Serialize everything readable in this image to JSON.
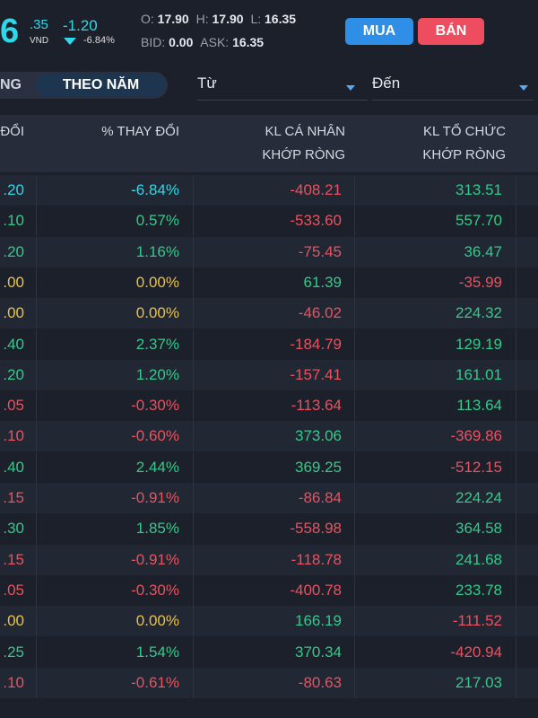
{
  "quote": {
    "price_int": "6",
    "price_dec": ".35",
    "currency": "VND",
    "change": "-1.20",
    "change_pct": "-6.84%",
    "open_label": "O:",
    "open": "17.90",
    "high_label": "H:",
    "high": "17.90",
    "low_label": "L:",
    "low": "16.35",
    "bid_label": "BID:",
    "bid": "0.00",
    "ask_label": "ASK:",
    "ask": "16.35"
  },
  "buttons": {
    "buy": "MUA",
    "sell": "BÁN"
  },
  "tabs": {
    "prev": "NG",
    "active": "THEO NĂM"
  },
  "filters": {
    "from": "Từ",
    "to": "Đến"
  },
  "table": {
    "headers": [
      "ĐỔI",
      "% THAY ĐỔI",
      [
        "KL CÁ NHÂN",
        "KHỚP RÒNG"
      ],
      [
        "KL TỔ CHỨC",
        "KHỚP RÒNG"
      ]
    ],
    "rows": [
      [
        ".20",
        "-6.84%",
        "-408.21",
        "313.51"
      ],
      [
        ".10",
        "0.57%",
        "-533.60",
        "557.70"
      ],
      [
        ".20",
        "1.16%",
        "-75.45",
        "36.47"
      ],
      [
        ".00",
        "0.00%",
        "61.39",
        "-35.99"
      ],
      [
        ".00",
        "0.00%",
        "-46.02",
        "224.32"
      ],
      [
        ".40",
        "2.37%",
        "-184.79",
        "129.19"
      ],
      [
        ".20",
        "1.20%",
        "-157.41",
        "161.01"
      ],
      [
        ".05",
        "-0.30%",
        "-113.64",
        "113.64"
      ],
      [
        ".10",
        "-0.60%",
        "373.06",
        "-369.86"
      ],
      [
        ".40",
        "2.44%",
        "369.25",
        "-512.15"
      ],
      [
        ".15",
        "-0.91%",
        "-86.84",
        "224.24"
      ],
      [
        ".30",
        "1.85%",
        "-558.98",
        "364.58"
      ],
      [
        ".15",
        "-0.91%",
        "-118.78",
        "241.68"
      ],
      [
        ".05",
        "-0.30%",
        "-400.78",
        "233.78"
      ],
      [
        ".00",
        "0.00%",
        "166.19",
        "-111.52"
      ],
      [
        ".25",
        "1.54%",
        "370.34",
        "-420.94"
      ],
      [
        ".10",
        "-0.61%",
        "-80.63",
        "217.03"
      ]
    ],
    "row_colors": [
      "#2fd8e8",
      "#35c98a",
      "#35c98a",
      "#e8c24a",
      "#e8c24a",
      "#35c98a",
      "#35c98a",
      "#e8535f",
      "#e8535f",
      "#35c98a",
      "#e8535f",
      "#35c98a",
      "#e8535f",
      "#e8535f",
      "#e8c24a",
      "#35c98a",
      "#e8535f"
    ]
  }
}
